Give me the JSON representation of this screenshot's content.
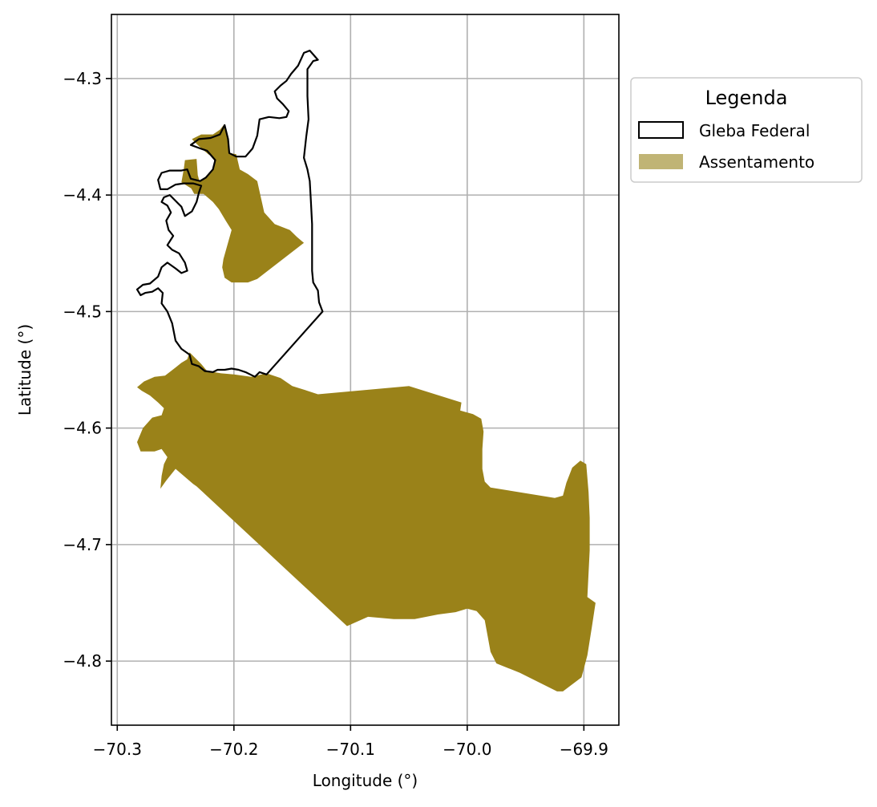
{
  "chart_data": {
    "type": "map",
    "xlabel": "Longitude (°)",
    "ylabel": "Latitude (°)",
    "xlim": [
      -70.305,
      -69.87
    ],
    "ylim": [
      -4.855,
      -4.245
    ],
    "x_ticks": [
      {
        "value": -70.3,
        "label": "−70.3"
      },
      {
        "value": -70.2,
        "label": "−70.2"
      },
      {
        "value": -70.1,
        "label": "−70.1"
      },
      {
        "value": -70.0,
        "label": "−70.0"
      },
      {
        "value": -69.9,
        "label": "−69.9"
      }
    ],
    "y_ticks": [
      {
        "value": -4.3,
        "label": "−4.3"
      },
      {
        "value": -4.4,
        "label": "−4.4"
      },
      {
        "value": -4.5,
        "label": "−4.5"
      },
      {
        "value": -4.6,
        "label": "−4.6"
      },
      {
        "value": -4.7,
        "label": "−4.7"
      },
      {
        "value": -4.8,
        "label": "−4.8"
      }
    ],
    "grid": true,
    "legend": {
      "title": "Legenda",
      "placement": "outside-top-right",
      "entries": [
        {
          "label": "Gleba Federal",
          "style": "outline",
          "color": "#000000"
        },
        {
          "label": "Assentamento",
          "style": "fill",
          "color": "#c0b475"
        }
      ]
    },
    "colors": {
      "assentamento": "#9a8219",
      "gleba_outline": "#000000",
      "grid": "#b0b0b0"
    },
    "layers": [
      {
        "name": "Gleba Federal",
        "polygons": [
          [
            [
              -70.135,
              -4.276
            ],
            [
              -70.128,
              -4.284
            ],
            [
              -70.132,
              -4.285
            ],
            [
              -70.137,
              -4.292
            ],
            [
              -70.137,
              -4.315
            ],
            [
              -70.136,
              -4.335
            ],
            [
              -70.138,
              -4.35
            ],
            [
              -70.14,
              -4.368
            ],
            [
              -70.137,
              -4.378
            ],
            [
              -70.135,
              -4.388
            ],
            [
              -70.134,
              -4.405
            ],
            [
              -70.133,
              -4.425
            ],
            [
              -70.133,
              -4.445
            ],
            [
              -70.133,
              -4.465
            ],
            [
              -70.132,
              -4.475
            ],
            [
              -70.128,
              -4.482
            ],
            [
              -70.127,
              -4.492
            ],
            [
              -70.124,
              -4.5
            ],
            [
              -70.172,
              -4.554
            ],
            [
              -70.178,
              -4.552
            ],
            [
              -70.182,
              -4.556
            ],
            [
              -70.186,
              -4.554
            ],
            [
              -70.19,
              -4.552
            ],
            [
              -70.196,
              -4.55
            ],
            [
              -70.202,
              -4.549
            ],
            [
              -70.208,
              -4.55
            ],
            [
              -70.214,
              -4.55
            ],
            [
              -70.218,
              -4.552
            ],
            [
              -70.225,
              -4.551
            ],
            [
              -70.23,
              -4.547
            ],
            [
              -70.236,
              -4.545
            ],
            [
              -70.238,
              -4.537
            ],
            [
              -70.245,
              -4.532
            ],
            [
              -70.25,
              -4.525
            ],
            [
              -70.253,
              -4.51
            ],
            [
              -70.257,
              -4.5
            ],
            [
              -70.262,
              -4.493
            ],
            [
              -70.261,
              -4.484
            ],
            [
              -70.265,
              -4.48
            ],
            [
              -70.27,
              -4.483
            ],
            [
              -70.276,
              -4.484
            ],
            [
              -70.28,
              -4.486
            ],
            [
              -70.283,
              -4.481
            ],
            [
              -70.278,
              -4.477
            ],
            [
              -70.272,
              -4.476
            ],
            [
              -70.265,
              -4.47
            ],
            [
              -70.262,
              -4.462
            ],
            [
              -70.257,
              -4.458
            ],
            [
              -70.25,
              -4.463
            ],
            [
              -70.245,
              -4.467
            ],
            [
              -70.24,
              -4.465
            ],
            [
              -70.242,
              -4.458
            ],
            [
              -70.247,
              -4.45
            ],
            [
              -70.253,
              -4.447
            ],
            [
              -70.257,
              -4.443
            ],
            [
              -70.252,
              -4.435
            ],
            [
              -70.256,
              -4.43
            ],
            [
              -70.258,
              -4.422
            ],
            [
              -70.254,
              -4.415
            ],
            [
              -70.257,
              -4.409
            ],
            [
              -70.262,
              -4.406
            ],
            [
              -70.26,
              -4.402
            ],
            [
              -70.255,
              -4.4
            ],
            [
              -70.25,
              -4.405
            ],
            [
              -70.245,
              -4.41
            ],
            [
              -70.242,
              -4.418
            ],
            [
              -70.236,
              -4.414
            ],
            [
              -70.232,
              -4.406
            ],
            [
              -70.23,
              -4.398
            ],
            [
              -70.228,
              -4.392
            ],
            [
              -70.235,
              -4.39
            ],
            [
              -70.243,
              -4.39
            ],
            [
              -70.25,
              -4.391
            ],
            [
              -70.257,
              -4.395
            ],
            [
              -70.263,
              -4.395
            ],
            [
              -70.265,
              -4.387
            ],
            [
              -70.262,
              -4.381
            ],
            [
              -70.255,
              -4.379
            ],
            [
              -70.245,
              -4.379
            ],
            [
              -70.24,
              -4.378
            ],
            [
              -70.237,
              -4.386
            ],
            [
              -70.229,
              -4.388
            ],
            [
              -70.224,
              -4.385
            ],
            [
              -70.218,
              -4.378
            ],
            [
              -70.216,
              -4.37
            ],
            [
              -70.223,
              -4.362
            ],
            [
              -70.229,
              -4.36
            ],
            [
              -70.237,
              -4.357
            ],
            [
              -70.23,
              -4.352
            ],
            [
              -70.22,
              -4.351
            ],
            [
              -70.212,
              -4.348
            ],
            [
              -70.208,
              -4.34
            ],
            [
              -70.205,
              -4.352
            ],
            [
              -70.204,
              -4.364
            ],
            [
              -70.198,
              -4.367
            ],
            [
              -70.19,
              -4.367
            ],
            [
              -70.184,
              -4.36
            ],
            [
              -70.18,
              -4.349
            ],
            [
              -70.178,
              -4.335
            ],
            [
              -70.17,
              -4.333
            ],
            [
              -70.161,
              -4.334
            ],
            [
              -70.155,
              -4.333
            ],
            [
              -70.153,
              -4.328
            ],
            [
              -70.158,
              -4.322
            ],
            [
              -70.163,
              -4.317
            ],
            [
              -70.165,
              -4.311
            ],
            [
              -70.16,
              -4.306
            ],
            [
              -70.155,
              -4.302
            ],
            [
              -70.151,
              -4.296
            ],
            [
              -70.145,
              -4.289
            ],
            [
              -70.14,
              -4.278
            ]
          ]
        ]
      },
      {
        "name": "Assentamento",
        "polygons": [
          [
            [
              -70.242,
              -4.37
            ],
            [
              -70.232,
              -4.369
            ],
            [
              -70.231,
              -4.383
            ],
            [
              -70.229,
              -4.39
            ],
            [
              -70.229,
              -4.398
            ],
            [
              -70.234,
              -4.396
            ],
            [
              -70.245,
              -4.389
            ],
            [
              -70.243,
              -4.378
            ]
          ],
          [
            [
              -70.208,
              -4.339
            ],
            [
              -70.206,
              -4.35
            ],
            [
              -70.204,
              -4.364
            ],
            [
              -70.198,
              -4.365
            ],
            [
              -70.195,
              -4.378
            ],
            [
              -70.188,
              -4.382
            ],
            [
              -70.18,
              -4.388
            ],
            [
              -70.174,
              -4.415
            ],
            [
              -70.165,
              -4.425
            ],
            [
              -70.152,
              -4.43
            ],
            [
              -70.146,
              -4.436
            ],
            [
              -70.14,
              -4.441
            ],
            [
              -70.18,
              -4.472
            ],
            [
              -70.188,
              -4.475
            ],
            [
              -70.192,
              -4.475
            ],
            [
              -70.202,
              -4.475
            ],
            [
              -70.208,
              -4.471
            ],
            [
              -70.21,
              -4.462
            ],
            [
              -70.209,
              -4.455
            ],
            [
              -70.202,
              -4.43
            ],
            [
              -70.207,
              -4.422
            ],
            [
              -70.213,
              -4.412
            ],
            [
              -70.218,
              -4.406
            ],
            [
              -70.226,
              -4.399
            ],
            [
              -70.234,
              -4.399
            ],
            [
              -70.24,
              -4.388
            ],
            [
              -70.23,
              -4.388
            ],
            [
              -70.226,
              -4.386
            ],
            [
              -70.217,
              -4.376
            ],
            [
              -70.217,
              -4.368
            ],
            [
              -70.222,
              -4.365
            ],
            [
              -70.23,
              -4.358
            ],
            [
              -70.236,
              -4.352
            ],
            [
              -70.228,
              -4.348
            ],
            [
              -70.218,
              -4.348
            ],
            [
              -70.212,
              -4.344
            ]
          ],
          [
            [
              -70.238,
              -4.535
            ],
            [
              -70.228,
              -4.545
            ],
            [
              -70.223,
              -4.551
            ],
            [
              -70.211,
              -4.553
            ],
            [
              -70.2,
              -4.554
            ],
            [
              -70.185,
              -4.556
            ],
            [
              -70.172,
              -4.553
            ],
            [
              -70.16,
              -4.557
            ],
            [
              -70.15,
              -4.564
            ],
            [
              -70.14,
              -4.567
            ],
            [
              -70.128,
              -4.571
            ],
            [
              -70.05,
              -4.564
            ],
            [
              -70.005,
              -4.578
            ],
            [
              -70.006,
              -4.585
            ],
            [
              -69.995,
              -4.588
            ],
            [
              -69.988,
              -4.592
            ],
            [
              -69.986,
              -4.603
            ],
            [
              -69.987,
              -4.618
            ],
            [
              -69.987,
              -4.635
            ],
            [
              -69.985,
              -4.646
            ],
            [
              -69.98,
              -4.651
            ],
            [
              -69.925,
              -4.66
            ],
            [
              -69.918,
              -4.658
            ],
            [
              -69.915,
              -4.647
            ],
            [
              -69.91,
              -4.634
            ],
            [
              -69.903,
              -4.628
            ],
            [
              -69.898,
              -4.631
            ],
            [
              -69.896,
              -4.655
            ],
            [
              -69.895,
              -4.677
            ],
            [
              -69.895,
              -4.705
            ],
            [
              -69.897,
              -4.745
            ],
            [
              -69.89,
              -4.75
            ],
            [
              -69.893,
              -4.77
            ],
            [
              -69.897,
              -4.795
            ],
            [
              -69.902,
              -4.814
            ],
            [
              -69.918,
              -4.826
            ],
            [
              -69.923,
              -4.826
            ],
            [
              -69.955,
              -4.81
            ],
            [
              -69.975,
              -4.802
            ],
            [
              -69.98,
              -4.792
            ],
            [
              -69.985,
              -4.765
            ],
            [
              -69.992,
              -4.757
            ],
            [
              -70.0,
              -4.755
            ],
            [
              -70.01,
              -4.758
            ],
            [
              -70.025,
              -4.76
            ],
            [
              -70.045,
              -4.764
            ],
            [
              -70.063,
              -4.764
            ],
            [
              -70.085,
              -4.762
            ],
            [
              -70.103,
              -4.77
            ],
            [
              -70.232,
              -4.65
            ],
            [
              -70.235,
              -4.648
            ],
            [
              -70.25,
              -4.635
            ],
            [
              -70.258,
              -4.645
            ],
            [
              -70.263,
              -4.652
            ],
            [
              -70.262,
              -4.641
            ],
            [
              -70.26,
              -4.631
            ],
            [
              -70.257,
              -4.625
            ],
            [
              -70.262,
              -4.618
            ],
            [
              -70.268,
              -4.62
            ],
            [
              -70.28,
              -4.62
            ],
            [
              -70.283,
              -4.612
            ],
            [
              -70.278,
              -4.6
            ],
            [
              -70.27,
              -4.591
            ],
            [
              -70.262,
              -4.589
            ],
            [
              -70.26,
              -4.583
            ],
            [
              -70.265,
              -4.578
            ],
            [
              -70.272,
              -4.572
            ],
            [
              -70.279,
              -4.568
            ],
            [
              -70.283,
              -4.565
            ],
            [
              -70.277,
              -4.56
            ],
            [
              -70.268,
              -4.556
            ],
            [
              -70.259,
              -4.555
            ],
            [
              -70.25,
              -4.548
            ],
            [
              -70.245,
              -4.544
            ],
            [
              -70.24,
              -4.541
            ]
          ]
        ]
      }
    ]
  }
}
